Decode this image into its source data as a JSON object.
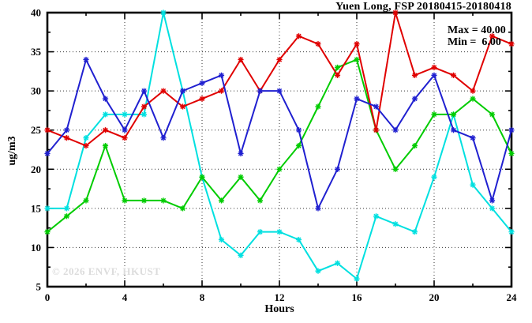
{
  "title": "Yuen Long, FSP 20180415-20180418",
  "legend": {
    "max_label": "Max = 40.00",
    "min_label": "Min =  6.00"
  },
  "watermark": "© 2026 ENVF, HKUST",
  "chart_data": {
    "type": "line",
    "title": "Yuen Long, FSP 20180415-20180418",
    "xlabel": "Hours",
    "ylabel": "ug/m3",
    "xlim": [
      0,
      24
    ],
    "ylim": [
      5,
      40
    ],
    "x_ticks": [
      0,
      4,
      8,
      12,
      16,
      20,
      24
    ],
    "x_minor_step": 2,
    "y_ticks": [
      5,
      10,
      15,
      20,
      25,
      30,
      35,
      40
    ],
    "y_minor_step": 2.5,
    "grid": true,
    "legend_position": "top-right-inside",
    "stats": {
      "max": "40.00",
      "min": "6.00"
    },
    "x": [
      0,
      1,
      2,
      3,
      4,
      5,
      6,
      7,
      8,
      9,
      10,
      11,
      12,
      13,
      14,
      15,
      16,
      17,
      18,
      19,
      20,
      21,
      22,
      23,
      24
    ],
    "series": [
      {
        "name": "series-cyan",
        "color": "#00e0e0",
        "values": [
          15,
          15,
          24,
          27,
          27,
          27,
          40,
          30,
          19,
          11,
          9,
          12,
          12,
          11,
          7,
          8,
          6,
          14,
          13,
          12,
          19,
          27,
          18,
          15,
          12
        ]
      },
      {
        "name": "series-green",
        "color": "#00cc00",
        "values": [
          12,
          14,
          16,
          23,
          16,
          16,
          16,
          15,
          19,
          16,
          19,
          16,
          20,
          23,
          28,
          33,
          34,
          25,
          20,
          23,
          27,
          27,
          29,
          27,
          22
        ]
      },
      {
        "name": "series-red",
        "color": "#e00000",
        "values": [
          25,
          24,
          23,
          25,
          24,
          28,
          30,
          28,
          29,
          30,
          34,
          30,
          34,
          37,
          36,
          32,
          36,
          25,
          40,
          32,
          33,
          32,
          30,
          37,
          36
        ]
      },
      {
        "name": "series-blue",
        "color": "#2020d0",
        "values": [
          22,
          25,
          34,
          29,
          25,
          30,
          24,
          30,
          31,
          32,
          22,
          30,
          30,
          25,
          15,
          20,
          29,
          28,
          25,
          29,
          32,
          25,
          24,
          16,
          25
        ]
      }
    ]
  }
}
